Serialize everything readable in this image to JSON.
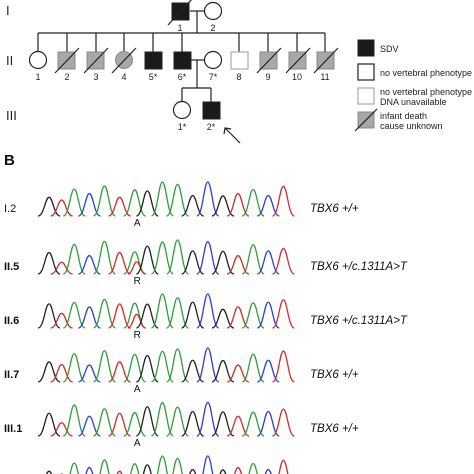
{
  "panel_b_label": "B",
  "generations": [
    "I",
    "II",
    "III"
  ],
  "pedigree": {
    "gen1": [
      "1",
      "2"
    ],
    "gen2": [
      "1",
      "2",
      "3",
      "4",
      "5*",
      "6*",
      "7*",
      "8",
      "9",
      "10",
      "11"
    ],
    "gen3": [
      "1*",
      "2*"
    ]
  },
  "legend": [
    {
      "label": "SDV"
    },
    {
      "label": "no vertebral phenotype"
    },
    {
      "label": "no vertebral phenotype",
      "label2": "DNA unavailable"
    },
    {
      "label": "infant death",
      "label2": "cause unknown"
    }
  ],
  "traces": [
    {
      "sample": "I.2",
      "base": "A",
      "genotype": "TBX6 +/+"
    },
    {
      "sample": "II.5",
      "base": "R",
      "genotype": "TBX6 +/c.1311A>T"
    },
    {
      "sample": "II.6",
      "base": "R",
      "genotype": "TBX6 +/c.1311A>T"
    },
    {
      "sample": "II.7",
      "base": "A",
      "genotype": "TBX6 +/+"
    },
    {
      "sample": "III.1",
      "base": "A",
      "genotype": "TBX6 +/+"
    }
  ],
  "colors": {
    "affected": "#1a1a1a",
    "infant_death": "#a8a8a8",
    "unavailable_outline": "#aaaaaa",
    "trace_green": "#2e9e3a",
    "trace_red": "#d42a2a",
    "trace_blue": "#2a3fd6",
    "trace_black": "#222222"
  }
}
